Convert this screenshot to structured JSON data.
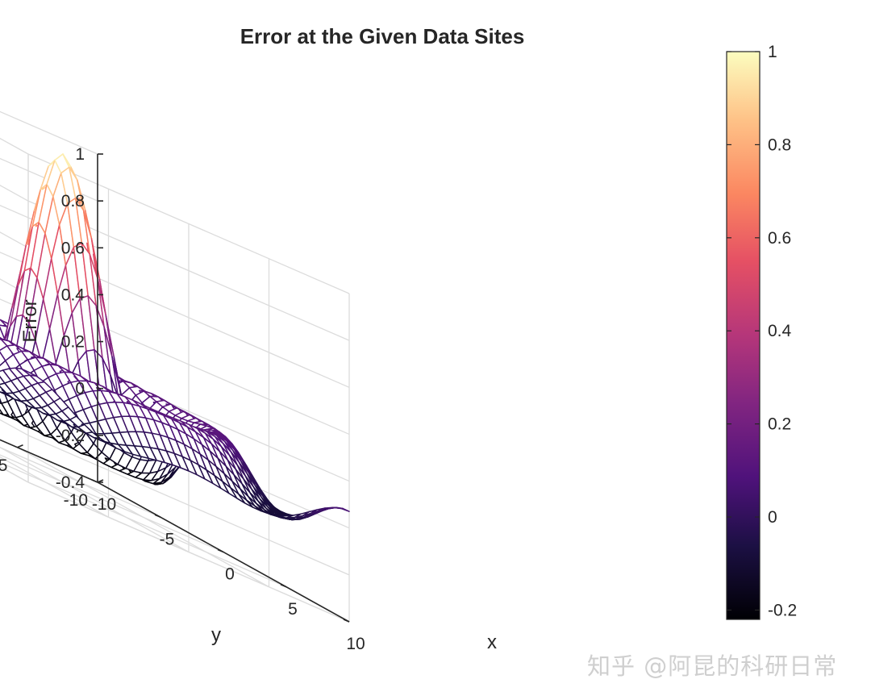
{
  "chart_data": {
    "type": "surface",
    "title": "Error at the Given Data Sites",
    "xlabel": "x",
    "ylabel": "y",
    "zlabel": "Error",
    "xlim": [
      -10,
      10
    ],
    "ylim": [
      -10,
      10
    ],
    "zlim": [
      -0.4,
      1
    ],
    "x_ticks": [
      "-10",
      "-5",
      "0",
      "5",
      "10"
    ],
    "y_ticks": [
      "-10",
      "-5",
      "0",
      "5",
      "10"
    ],
    "z_ticks": [
      "-0.4",
      "-0.2",
      "0",
      "0.2",
      "0.4",
      "0.6",
      "0.8",
      "1"
    ],
    "grid": true,
    "mesh": "wireframe",
    "surface_function": "sin(r)/r, r = sqrt(x^2 + y^2)",
    "grid_points": 41,
    "peak": {
      "x": 0,
      "y": 0,
      "z": 1
    },
    "colormap": "magma",
    "colorbar": {
      "limits": [
        -0.22,
        1
      ],
      "ticks": [
        "-0.2",
        "0",
        "0.2",
        "0.4",
        "0.6",
        "0.8",
        "1"
      ]
    }
  },
  "watermark": "知乎 @阿昆的科研日常"
}
